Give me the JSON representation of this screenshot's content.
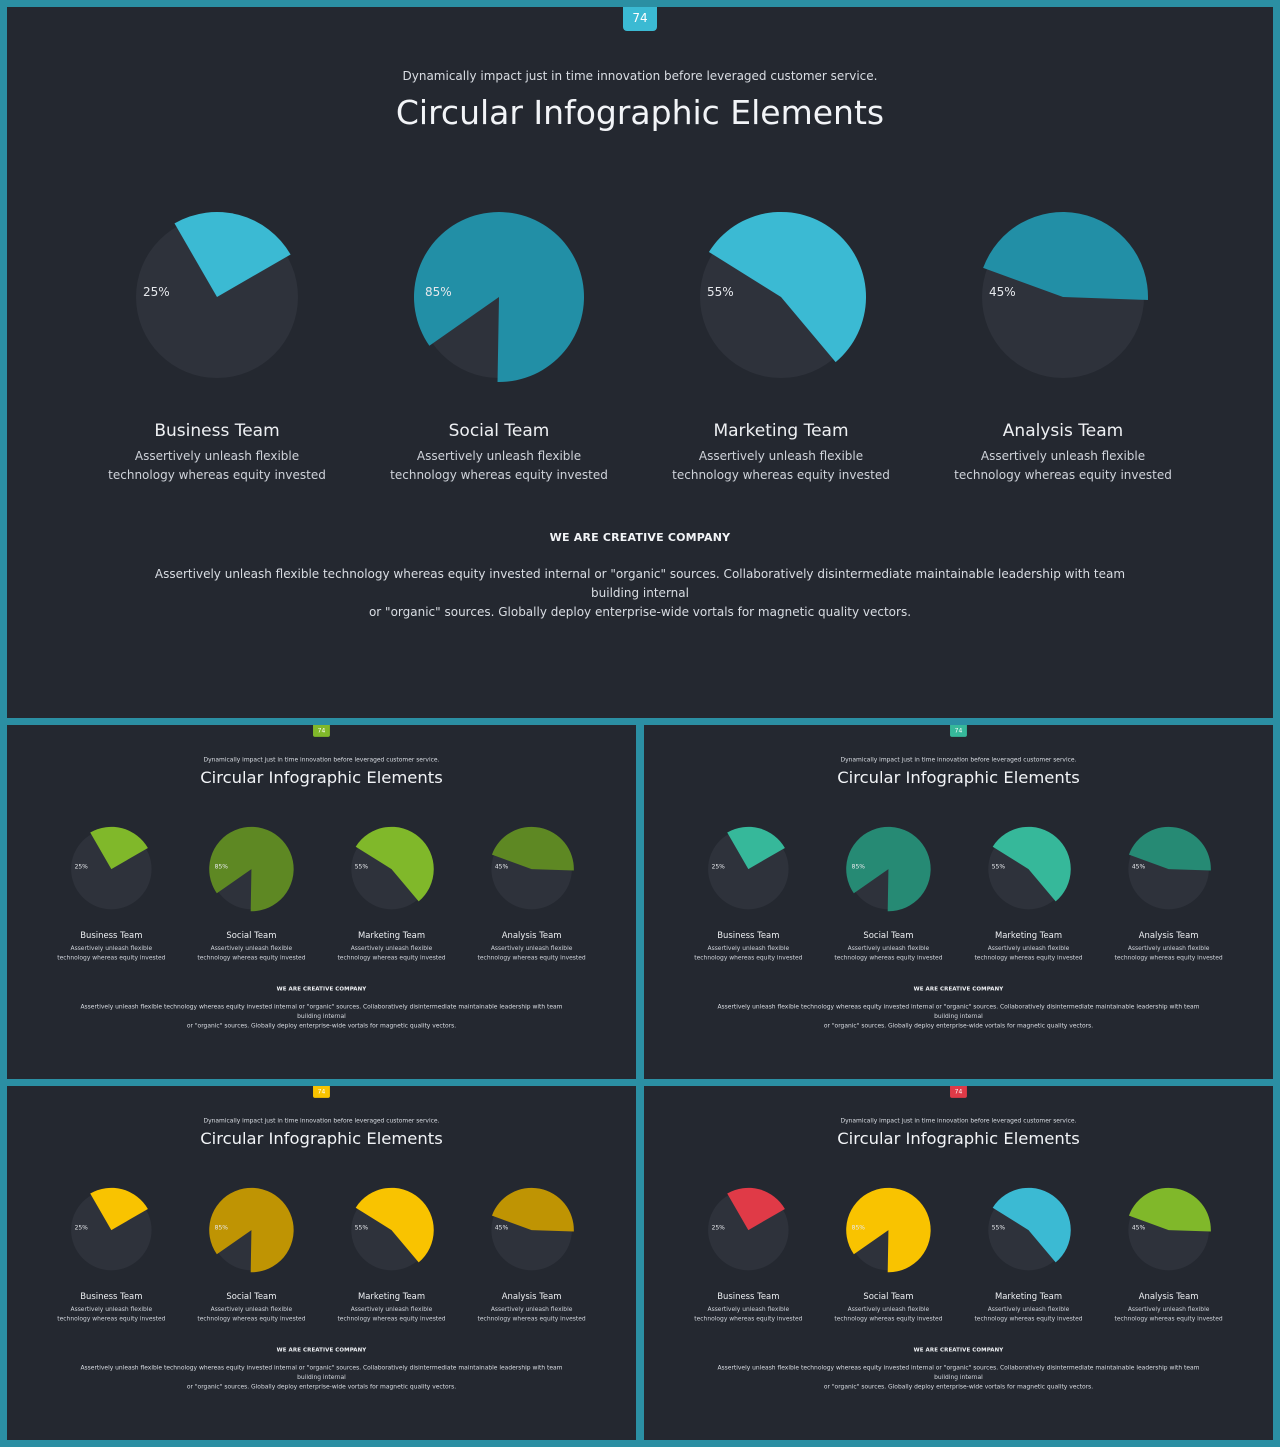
{
  "page_number": "74",
  "subtitle": "Dynamically impact just in time innovation  before leveraged customer service.",
  "title": "Circular Infographic Elements",
  "teams": [
    {
      "label": "25%",
      "value": 25,
      "name": "Business Team",
      "desc_line1": "Assertively unleash flexible",
      "desc_line2": "technology whereas equity invested"
    },
    {
      "label": "85%",
      "value": 85,
      "name": "Social Team",
      "desc_line1": "Assertively unleash flexible",
      "desc_line2": "technology whereas equity invested"
    },
    {
      "label": "55%",
      "value": 55,
      "name": "Marketing Team",
      "desc_line1": "Assertively unleash flexible",
      "desc_line2": "technology whereas equity invested"
    },
    {
      "label": "45%",
      "value": 45,
      "name": "Analysis Team",
      "desc_line1": "Assertively unleash flexible",
      "desc_line2": "technology whereas equity invested"
    }
  ],
  "bottom_heading": "WE ARE CREATIVE COMPANY",
  "bottom_body_line1": "Assertively unleash flexible technology whereas equity invested internal or \"organic\" sources. Collaboratively disintermediate maintainable leadership with team building internal",
  "bottom_body_line2": "or \"organic\" sources. Globally deploy enterprise-wide vortals for magnetic quality vectors.",
  "colors": {
    "frame": "#2b8fa3",
    "slide_bg": "#242830",
    "pie_base": "#2e323b"
  },
  "slides": [
    {
      "id": "main",
      "badge_color": "#3bbad3",
      "pie_colors": [
        "#3bbad3",
        "#228fa6",
        "#3bbad3",
        "#228fa6"
      ]
    },
    {
      "id": "green",
      "badge_color": "#80b82a",
      "pie_colors": [
        "#80b82a",
        "#5e8823",
        "#80b82a",
        "#5e8823"
      ]
    },
    {
      "id": "teal",
      "badge_color": "#36b89a",
      "pie_colors": [
        "#36b89a",
        "#268a74",
        "#36b89a",
        "#268a74"
      ]
    },
    {
      "id": "yellow",
      "badge_color": "#f9c300",
      "pie_colors": [
        "#f9c300",
        "#bf9403",
        "#f9c300",
        "#bf9403"
      ]
    },
    {
      "id": "multi",
      "badge_color": "#e03a47",
      "pie_colors": [
        "#e03a47",
        "#f9c300",
        "#3bbad3",
        "#80b82a"
      ]
    }
  ],
  "pie_geometry_note": ""
}
